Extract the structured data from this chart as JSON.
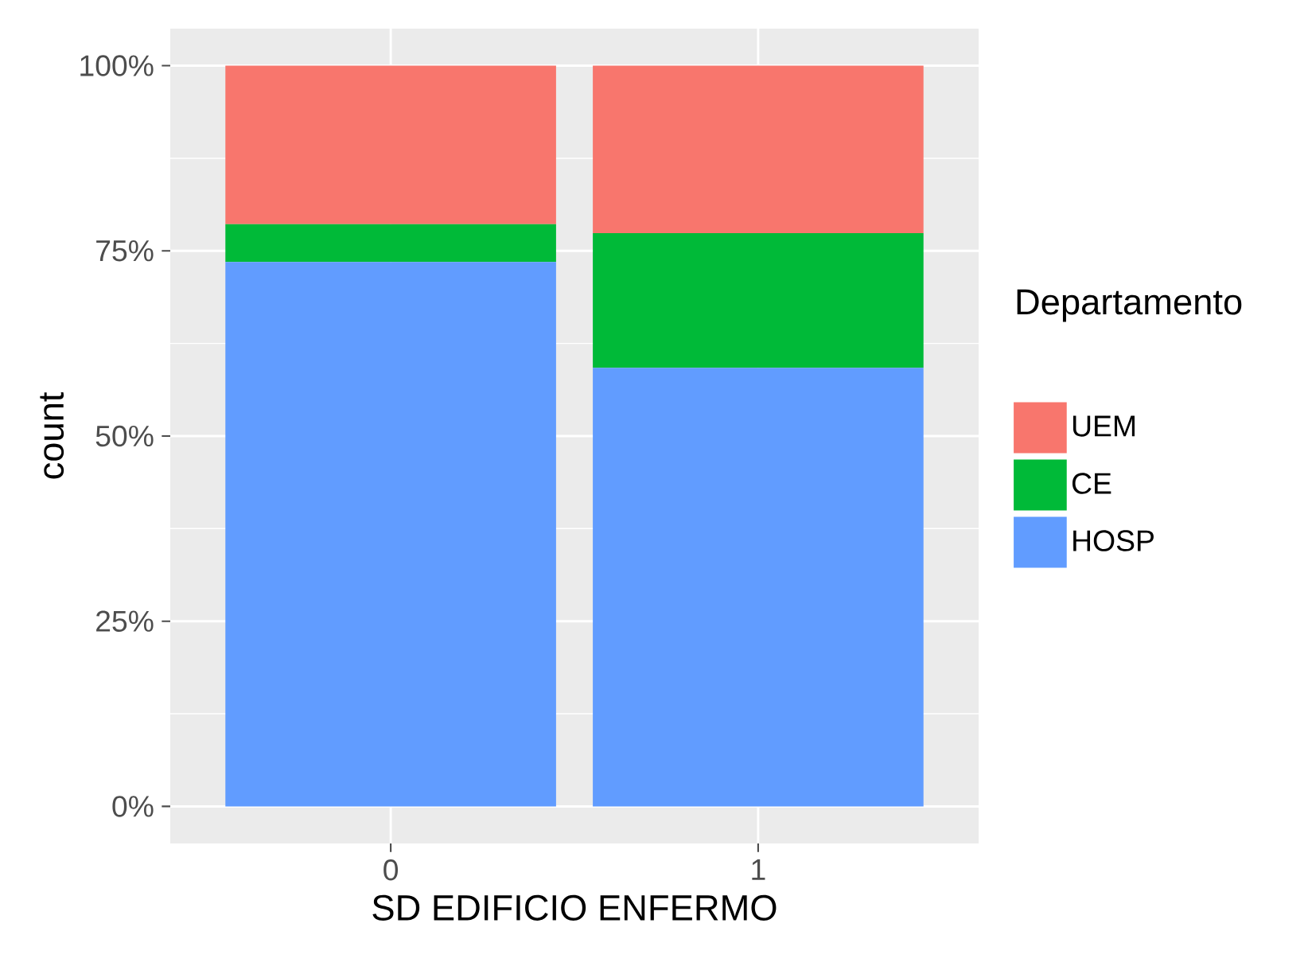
{
  "chart_data": {
    "type": "bar",
    "stacked": true,
    "xlabel": "SD EDIFICIO ENFERMO",
    "ylabel": "count",
    "legend_title": "Departamento",
    "categories": [
      "0",
      "1"
    ],
    "series": [
      {
        "name": "HOSP",
        "color": "#619cff",
        "values": [
          73.5,
          59.2
        ]
      },
      {
        "name": "CE",
        "color": "#00ba38",
        "values": [
          5.1,
          18.2
        ]
      },
      {
        "name": "UEM",
        "color": "#f8766d",
        "values": [
          21.4,
          22.6
        ]
      }
    ],
    "ylim": [
      -5,
      105
    ],
    "yticks": [
      {
        "value": 0,
        "label": "0%"
      },
      {
        "value": 25,
        "label": "25%"
      },
      {
        "value": 50,
        "label": "50%"
      },
      {
        "value": 75,
        "label": "75%"
      },
      {
        "value": 100,
        "label": "100%"
      }
    ],
    "grid": true,
    "legend": "right"
  }
}
